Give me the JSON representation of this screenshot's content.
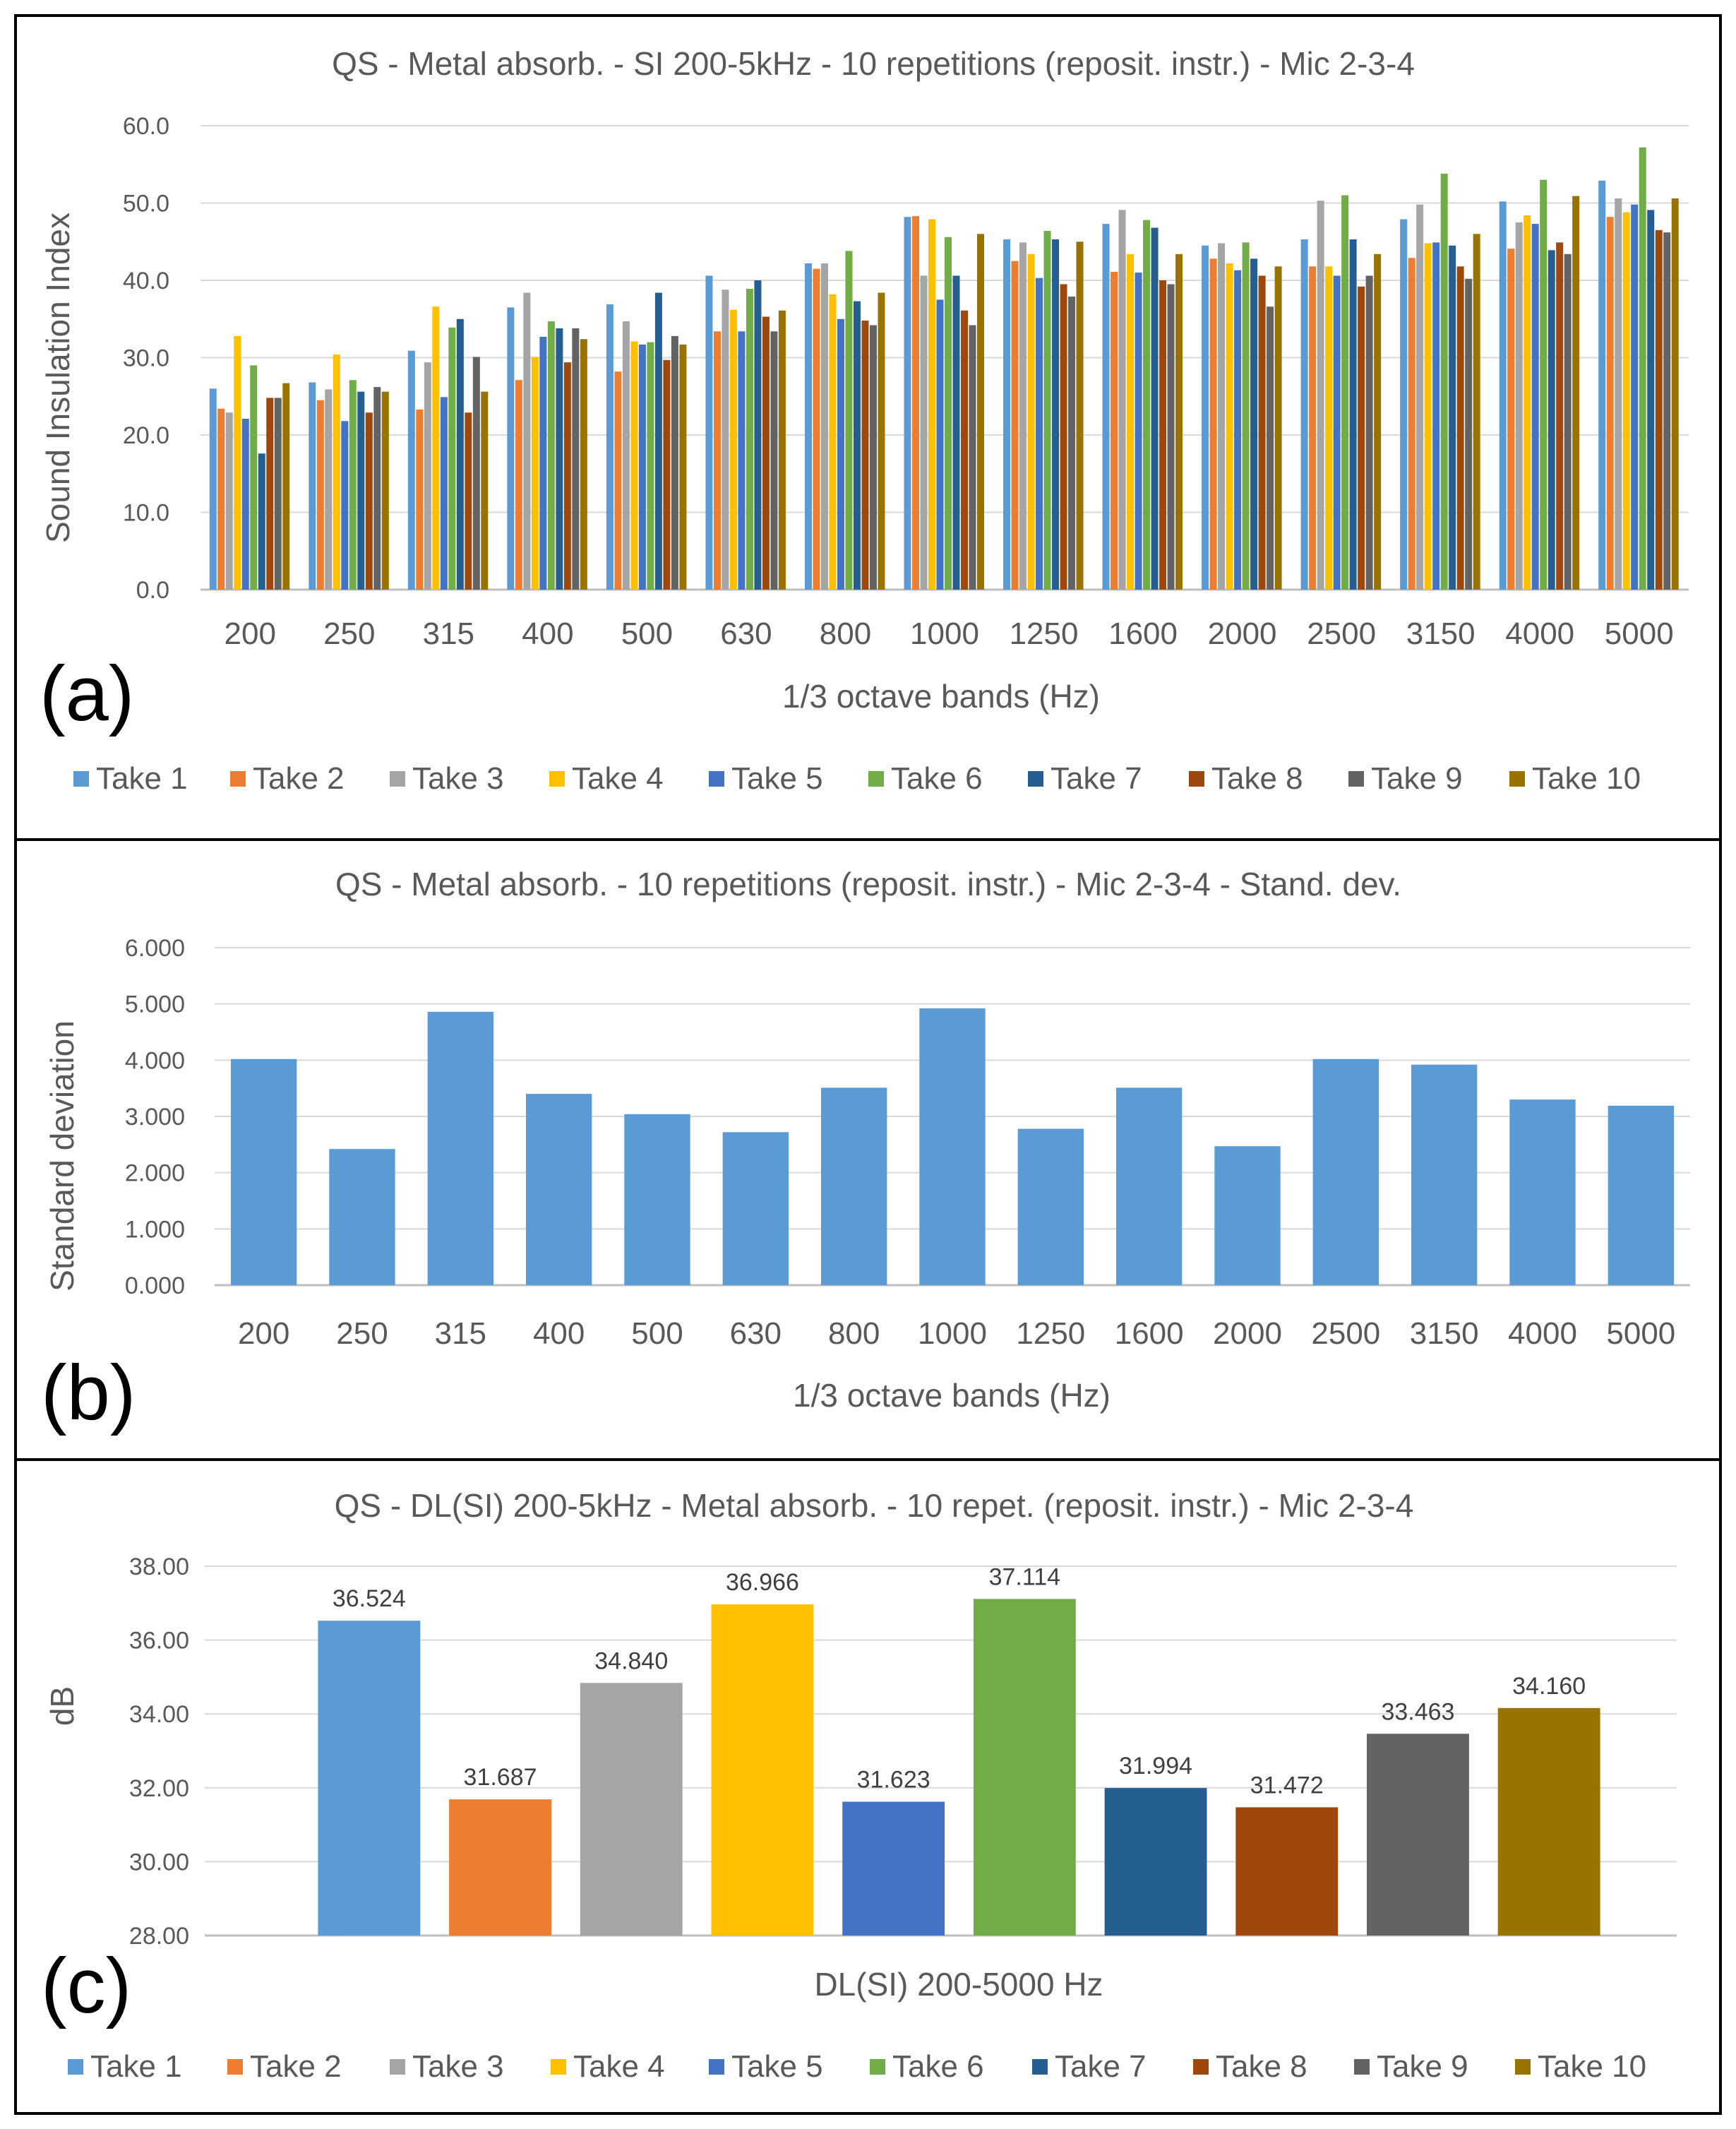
{
  "legend_labels": [
    "Take 1",
    "Take 2",
    "Take 3",
    "Take 4",
    "Take 5",
    "Take 6",
    "Take 7",
    "Take 8",
    "Take 9",
    "Take 10"
  ],
  "colors": [
    "#5B9BD5",
    "#ED7D31",
    "#A5A5A5",
    "#FFC000",
    "#4472C4",
    "#70AD47",
    "#255E91",
    "#9E480E",
    "#636363",
    "#997300"
  ],
  "chart_data": [
    {
      "panel": "(a)",
      "type": "bar",
      "title": "QS - Metal absorb. - SI 200-5kHz - 10 repetitions (reposit. instr.) - Mic 2-3-4",
      "xlabel": "1/3 octave bands (Hz)",
      "ylabel": "Sound Insulation Index",
      "ylim": [
        0,
        60
      ],
      "yticks": [
        "0.0",
        "10.0",
        "20.0",
        "30.0",
        "40.0",
        "50.0",
        "60.0"
      ],
      "categories": [
        "200",
        "250",
        "315",
        "400",
        "500",
        "630",
        "800",
        "1000",
        "1250",
        "1600",
        "2000",
        "2500",
        "3150",
        "4000",
        "5000"
      ],
      "legend_position": "bottom",
      "series": [
        {
          "name": "Take 1",
          "values": [
            26.0,
            26.8,
            30.9,
            36.5,
            36.9,
            40.6,
            42.2,
            48.2,
            45.3,
            47.3,
            44.5,
            45.3,
            47.9,
            50.2,
            52.9
          ]
        },
        {
          "name": "Take 2",
          "values": [
            23.4,
            24.5,
            23.3,
            27.1,
            28.2,
            33.4,
            41.5,
            48.3,
            42.5,
            41.1,
            42.8,
            41.8,
            42.9,
            44.1,
            48.2
          ]
        },
        {
          "name": "Take 3",
          "values": [
            22.9,
            25.9,
            29.4,
            38.4,
            34.7,
            38.8,
            42.2,
            40.6,
            44.9,
            49.1,
            44.8,
            50.3,
            49.8,
            47.5,
            50.6
          ]
        },
        {
          "name": "Take 4",
          "values": [
            32.8,
            30.4,
            36.6,
            30.1,
            32.1,
            36.2,
            38.2,
            47.9,
            43.4,
            43.4,
            42.2,
            41.8,
            44.8,
            48.4,
            48.8
          ]
        },
        {
          "name": "Take 5",
          "values": [
            22.1,
            21.8,
            24.9,
            32.7,
            31.7,
            33.4,
            35.0,
            37.5,
            40.3,
            41.0,
            41.3,
            40.6,
            44.9,
            47.3,
            49.8
          ]
        },
        {
          "name": "Take 6",
          "values": [
            29.0,
            27.1,
            33.9,
            34.7,
            32.0,
            38.9,
            43.8,
            45.6,
            46.4,
            47.8,
            44.9,
            51.0,
            53.8,
            53.0,
            57.2
          ]
        },
        {
          "name": "Take 7",
          "values": [
            17.6,
            25.6,
            35.0,
            33.8,
            38.4,
            40.0,
            37.3,
            40.6,
            45.3,
            46.8,
            42.8,
            45.3,
            44.5,
            43.9,
            49.1
          ]
        },
        {
          "name": "Take 8",
          "values": [
            24.8,
            22.9,
            22.9,
            29.4,
            29.7,
            35.3,
            34.8,
            36.1,
            39.5,
            40.0,
            40.6,
            39.2,
            41.8,
            44.9,
            46.5
          ]
        },
        {
          "name": "Take 9",
          "values": [
            24.8,
            26.2,
            30.1,
            33.8,
            32.8,
            33.4,
            34.2,
            34.2,
            37.9,
            39.5,
            36.6,
            40.6,
            40.2,
            43.4,
            46.2
          ]
        },
        {
          "name": "Take 10",
          "values": [
            26.7,
            25.6,
            25.6,
            32.4,
            31.7,
            36.1,
            38.4,
            46.0,
            45.0,
            43.4,
            41.8,
            43.4,
            46.0,
            50.9,
            50.6
          ]
        }
      ]
    },
    {
      "panel": "(b)",
      "type": "bar",
      "title": "QS - Metal absorb. - 10 repetitions (reposit. instr.) - Mic 2-3-4 - Stand. dev.",
      "xlabel": "1/3 octave bands (Hz)",
      "ylabel": "Standard deviation",
      "ylim": [
        0,
        6
      ],
      "yticks": [
        "0.000",
        "1.000",
        "2.000",
        "3.000",
        "4.000",
        "5.000",
        "6.000"
      ],
      "categories": [
        "200",
        "250",
        "315",
        "400",
        "500",
        "630",
        "800",
        "1000",
        "1250",
        "1600",
        "2000",
        "2500",
        "3150",
        "4000",
        "5000"
      ],
      "values": [
        4.02,
        2.42,
        4.86,
        3.4,
        3.04,
        2.72,
        3.51,
        4.92,
        2.78,
        3.51,
        2.47,
        4.02,
        3.92,
        3.3,
        3.19
      ]
    },
    {
      "panel": "(c)",
      "type": "bar",
      "title": "QS - DL(SI) 200-5kHz - Metal absorb. - 10 repet. (reposit. instr.) - Mic 2-3-4",
      "xlabel": "DL(SI) 200-5000 Hz",
      "ylabel": "dB",
      "ylim": [
        28,
        38
      ],
      "yticks": [
        "28.00",
        "30.00",
        "32.00",
        "34.00",
        "36.00",
        "38.00"
      ],
      "legend_position": "bottom",
      "series": [
        {
          "name": "Take 1",
          "value": 36.524,
          "label": "36.524"
        },
        {
          "name": "Take 2",
          "value": 31.687,
          "label": "31.687"
        },
        {
          "name": "Take 3",
          "value": 34.84,
          "label": "34.840"
        },
        {
          "name": "Take 4",
          "value": 36.966,
          "label": "36.966"
        },
        {
          "name": "Take 5",
          "value": 31.623,
          "label": "31.623"
        },
        {
          "name": "Take 6",
          "value": 37.114,
          "label": "37.114"
        },
        {
          "name": "Take 7",
          "value": 31.994,
          "label": "31.994"
        },
        {
          "name": "Take 8",
          "value": 31.472,
          "label": "31.472"
        },
        {
          "name": "Take 9",
          "value": 33.463,
          "label": "33.463"
        },
        {
          "name": "Take 10",
          "value": 34.16,
          "label": "34.160"
        }
      ]
    }
  ]
}
